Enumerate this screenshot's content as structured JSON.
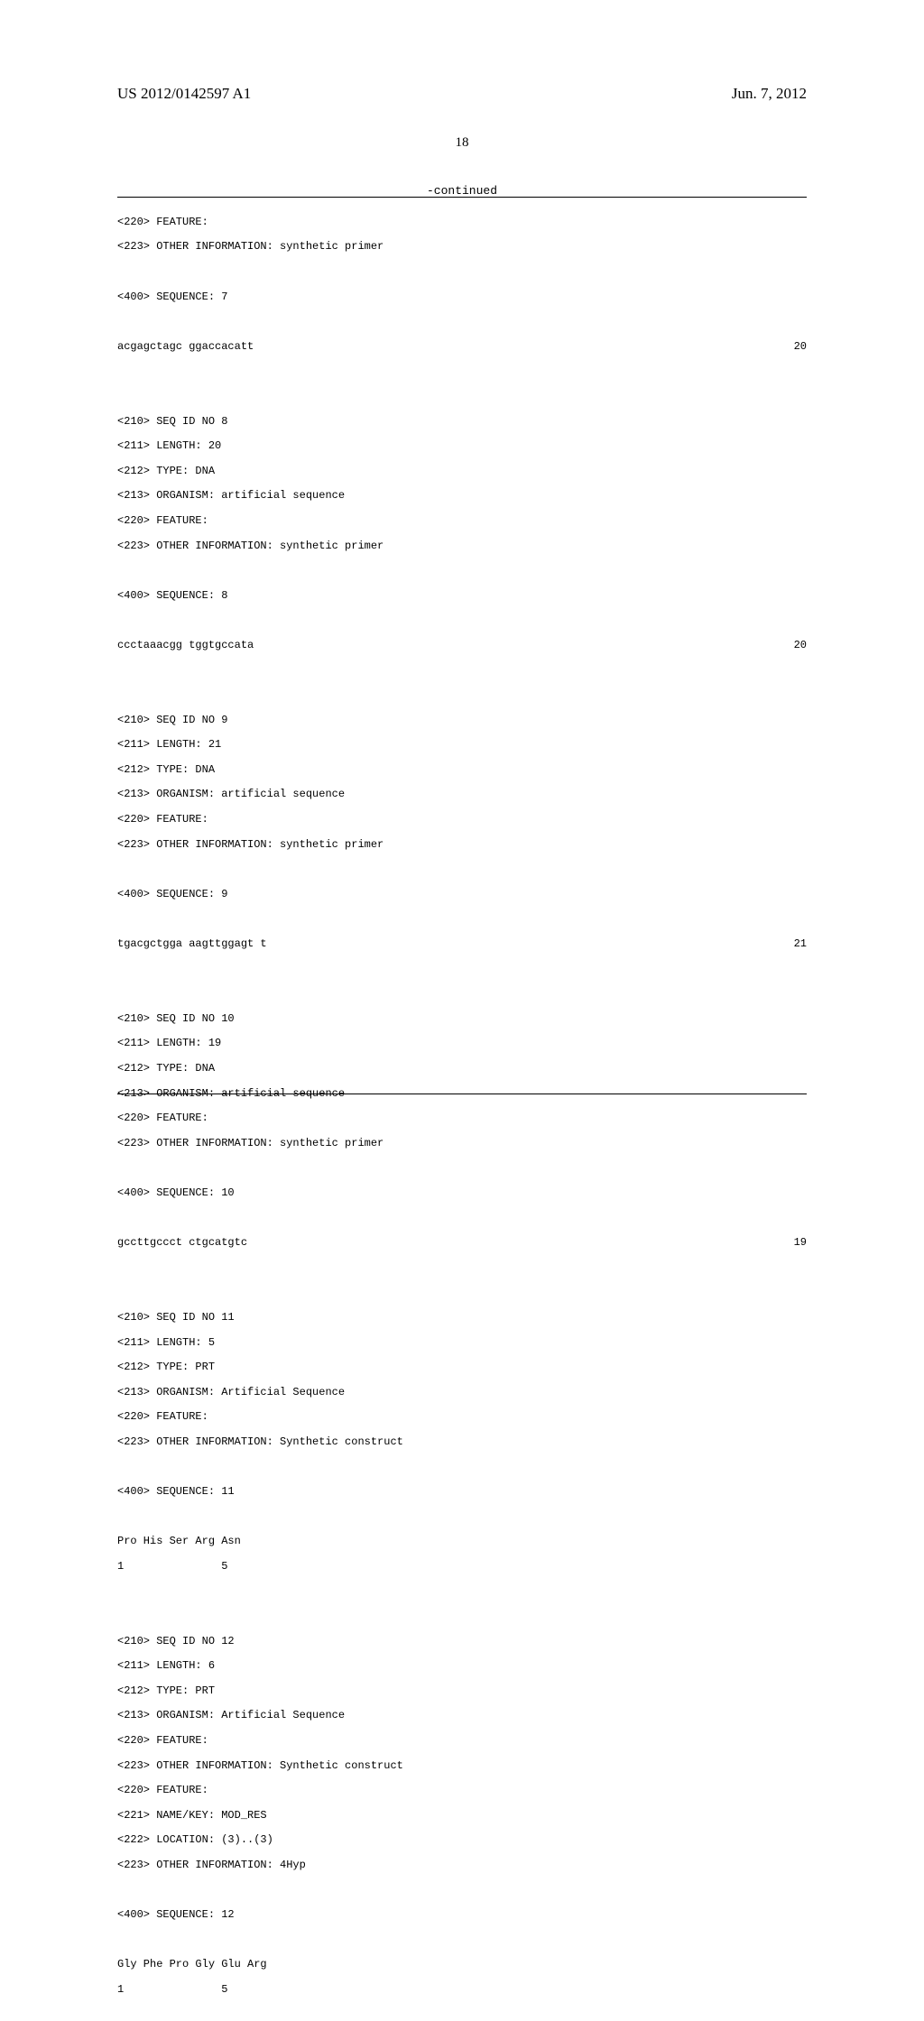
{
  "header": {
    "publication_number": "US 2012/0142597 A1",
    "date": "Jun. 7, 2012",
    "page_number": "18",
    "continued_label": "-continued"
  },
  "seq7_tail": {
    "l1": "<220> FEATURE:",
    "l2": "<223> OTHER INFORMATION: synthetic primer",
    "seq_label": "<400> SEQUENCE: 7",
    "seq_text": "acgagctagc ggaccacatt",
    "seq_len": "20"
  },
  "seq8": {
    "l1": "<210> SEQ ID NO 8",
    "l2": "<211> LENGTH: 20",
    "l3": "<212> TYPE: DNA",
    "l4": "<213> ORGANISM: artificial sequence",
    "l5": "<220> FEATURE:",
    "l6": "<223> OTHER INFORMATION: synthetic primer",
    "seq_label": "<400> SEQUENCE: 8",
    "seq_text": "ccctaaacgg tggtgccata",
    "seq_len": "20"
  },
  "seq9": {
    "l1": "<210> SEQ ID NO 9",
    "l2": "<211> LENGTH: 21",
    "l3": "<212> TYPE: DNA",
    "l4": "<213> ORGANISM: artificial sequence",
    "l5": "<220> FEATURE:",
    "l6": "<223> OTHER INFORMATION: synthetic primer",
    "seq_label": "<400> SEQUENCE: 9",
    "seq_text": "tgacgctgga aagttggagt t",
    "seq_len": "21"
  },
  "seq10": {
    "l1": "<210> SEQ ID NO 10",
    "l2": "<211> LENGTH: 19",
    "l3": "<212> TYPE: DNA",
    "l4": "<213> ORGANISM: artificial sequence",
    "l5": "<220> FEATURE:",
    "l6": "<223> OTHER INFORMATION: synthetic primer",
    "seq_label": "<400> SEQUENCE: 10",
    "seq_text": "gccttgccct ctgcatgtc",
    "seq_len": "19"
  },
  "seq11": {
    "l1": "<210> SEQ ID NO 11",
    "l2": "<211> LENGTH: 5",
    "l3": "<212> TYPE: PRT",
    "l4": "<213> ORGANISM: Artificial Sequence",
    "l5": "<220> FEATURE:",
    "l6": "<223> OTHER INFORMATION: Synthetic construct",
    "seq_label": "<400> SEQUENCE: 11",
    "aa_line": "Pro His Ser Arg Asn",
    "num_line": "1               5"
  },
  "seq12": {
    "l1": "<210> SEQ ID NO 12",
    "l2": "<211> LENGTH: 6",
    "l3": "<212> TYPE: PRT",
    "l4": "<213> ORGANISM: Artificial Sequence",
    "l5": "<220> FEATURE:",
    "l6": "<223> OTHER INFORMATION: Synthetic construct",
    "l7": "<220> FEATURE:",
    "l8": "<221> NAME/KEY: MOD_RES",
    "l9": "<222> LOCATION: (3)..(3)",
    "l10": "<223> OTHER INFORMATION: 4Hyp",
    "seq_label": "<400> SEQUENCE: 12",
    "aa_line": "Gly Phe Pro Gly Glu Arg",
    "num_line": "1               5"
  }
}
